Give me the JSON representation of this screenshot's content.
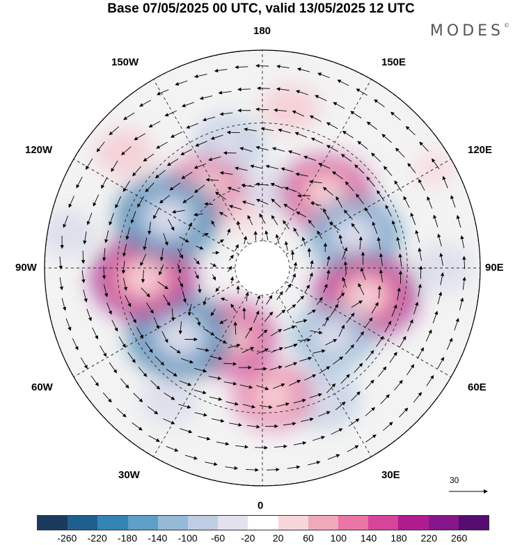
{
  "title": "Base 07/05/2025 00 UTC, valid 13/05/2025 12 UTC",
  "brand": "MODES",
  "brand_mark": "©",
  "longitude_labels": {
    "top": "180",
    "bottom": "0",
    "left": "90W",
    "right": "90E",
    "upper_left_1": "150W",
    "upper_left_2": "120W",
    "upper_right_1": "150E",
    "upper_right_2": "120E",
    "lower_left_1": "60W",
    "lower_left_2": "30W",
    "lower_right_1": "60E",
    "lower_right_2": "30E"
  },
  "reference_vector": {
    "label": "30"
  },
  "colorbar": {
    "ticks": [
      "-260",
      "-220",
      "-180",
      "-140",
      "-100",
      "-60",
      "-20",
      "20",
      "60",
      "100",
      "140",
      "180",
      "220",
      "260"
    ],
    "colors": [
      "#1b3a5e",
      "#1f5f8e",
      "#3584b6",
      "#5f9fc8",
      "#94bad8",
      "#bfcce2",
      "#e4e1ef",
      "#ffffff",
      "#f8d7da",
      "#f0a9ba",
      "#eb76a6",
      "#d6459a",
      "#b11d8f",
      "#86168a",
      "#560c71"
    ]
  },
  "anomalies": [
    {
      "lon": -165,
      "lat": 45,
      "v": -110
    },
    {
      "lon": -145,
      "lat": 55,
      "v": 175
    },
    {
      "lon": -160,
      "lat": 70,
      "v": 40
    },
    {
      "lon": 175,
      "lat": 62,
      "v": -80
    },
    {
      "lon": 140,
      "lat": 55,
      "v": 200
    },
    {
      "lon": 110,
      "lat": 55,
      "v": -190
    },
    {
      "lon": 75,
      "lat": 52,
      "v": 230
    },
    {
      "lon": 45,
      "lat": 55,
      "v": -170
    },
    {
      "lon": 25,
      "lat": 40,
      "v": -120
    },
    {
      "lon": 5,
      "lat": 45,
      "v": 140
    },
    {
      "lon": -25,
      "lat": 62,
      "v": 180
    },
    {
      "lon": -50,
      "lat": 52,
      "v": -240
    },
    {
      "lon": -85,
      "lat": 48,
      "v": 240
    },
    {
      "lon": -118,
      "lat": 52,
      "v": -250
    },
    {
      "lon": -100,
      "lat": 25,
      "v": -60
    },
    {
      "lon": -35,
      "lat": 35,
      "v": -70
    },
    {
      "lon": 170,
      "lat": 35,
      "v": 60
    },
    {
      "lon": 90,
      "lat": 30,
      "v": -60
    },
    {
      "lon": 120,
      "lat": 25,
      "v": 40
    },
    {
      "lon": -130,
      "lat": 30,
      "v": 70
    }
  ]
}
